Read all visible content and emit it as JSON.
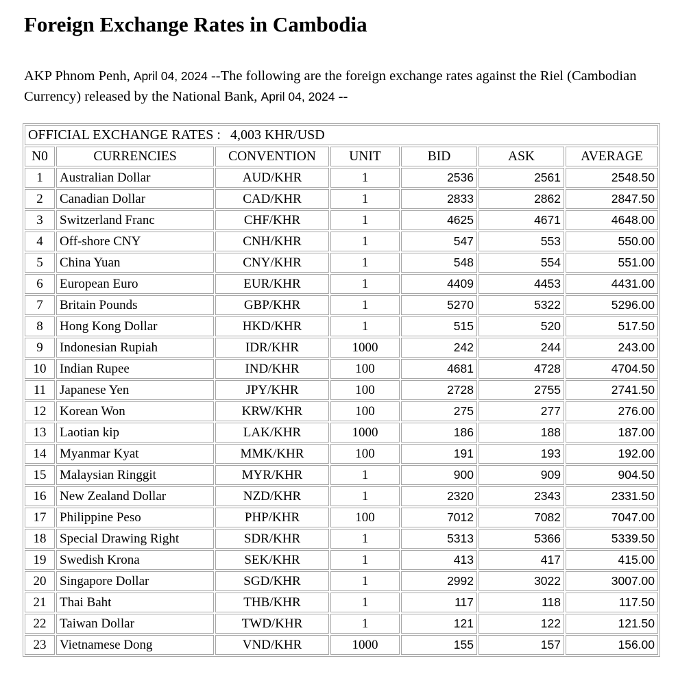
{
  "colors": {
    "background": "#ffffff",
    "text": "#000000",
    "table_border": "#a6a6a6"
  },
  "header": {
    "title": "Foreign Exchange Rates in Cambodia"
  },
  "intro": {
    "part1": "AKP Phnom Penh, ",
    "date1": "April 04, 2024",
    "part2": " --The following are the foreign exchange rates against the Riel (Cambodian Currency) released by the National Bank, ",
    "date2": "April 04, 2024",
    "part3": " --"
  },
  "table": {
    "caption_label": "OFFICIAL EXCHANGE RATES :",
    "caption_value": "4,003 KHR/USD",
    "headers": [
      "N0",
      "CURRENCIES",
      "CONVENTION",
      "UNIT",
      "BID",
      "ASK",
      "AVERAGE"
    ],
    "column_keys": [
      "no",
      "currency",
      "convention",
      "unit",
      "bid",
      "ask",
      "average"
    ],
    "rows": [
      [
        "1",
        "Australian Dollar",
        "AUD/KHR",
        "1",
        "2536",
        "2561",
        "2548.50"
      ],
      [
        "2",
        "Canadian Dollar",
        "CAD/KHR",
        "1",
        "2833",
        "2862",
        "2847.50"
      ],
      [
        "3",
        "Switzerland Franc",
        "CHF/KHR",
        "1",
        "4625",
        "4671",
        "4648.00"
      ],
      [
        "4",
        "Off-shore CNY",
        "CNH/KHR",
        "1",
        "547",
        "553",
        "550.00"
      ],
      [
        "5",
        "China Yuan",
        "CNY/KHR",
        "1",
        "548",
        "554",
        "551.00"
      ],
      [
        "6",
        "European Euro",
        "EUR/KHR",
        "1",
        "4409",
        "4453",
        "4431.00"
      ],
      [
        "7",
        "Britain Pounds",
        "GBP/KHR",
        "1",
        "5270",
        "5322",
        "5296.00"
      ],
      [
        "8",
        "Hong Kong Dollar",
        "HKD/KHR",
        "1",
        "515",
        "520",
        "517.50"
      ],
      [
        "9",
        "Indonesian Rupiah",
        "IDR/KHR",
        "1000",
        "242",
        "244",
        "243.00"
      ],
      [
        "10",
        "Indian Rupee",
        "IND/KHR",
        "100",
        "4681",
        "4728",
        "4704.50"
      ],
      [
        "11",
        "Japanese Yen",
        "JPY/KHR",
        "100",
        "2728",
        "2755",
        "2741.50"
      ],
      [
        "12",
        "Korean Won",
        "KRW/KHR",
        "100",
        "275",
        "277",
        "276.00"
      ],
      [
        "13",
        "Laotian kip",
        "LAK/KHR",
        "1000",
        "186",
        "188",
        "187.00"
      ],
      [
        "14",
        "Myanmar Kyat",
        "MMK/KHR",
        "100",
        "191",
        "193",
        "192.00"
      ],
      [
        "15",
        "Malaysian Ringgit",
        "MYR/KHR",
        "1",
        "900",
        "909",
        "904.50"
      ],
      [
        "16",
        "New Zealand Dollar",
        "NZD/KHR",
        "1",
        "2320",
        "2343",
        "2331.50"
      ],
      [
        "17",
        "Philippine Peso",
        "PHP/KHR",
        "100",
        "7012",
        "7082",
        "7047.00"
      ],
      [
        "18",
        "Special Drawing Right",
        "SDR/KHR",
        "1",
        "5313",
        "5366",
        "5339.50"
      ],
      [
        "19",
        "Swedish Krona",
        "SEK/KHR",
        "1",
        "413",
        "417",
        "415.00"
      ],
      [
        "20",
        "Singapore Dollar",
        "SGD/KHR",
        "1",
        "2992",
        "3022",
        "3007.00"
      ],
      [
        "21",
        "Thai Baht",
        "THB/KHR",
        "1",
        "117",
        "118",
        "117.50"
      ],
      [
        "22",
        "Taiwan Dollar",
        "TWD/KHR",
        "1",
        "121",
        "122",
        "121.50"
      ],
      [
        "23",
        "Vietnamese Dong",
        "VND/KHR",
        "1000",
        "155",
        "157",
        "156.00"
      ]
    ]
  }
}
